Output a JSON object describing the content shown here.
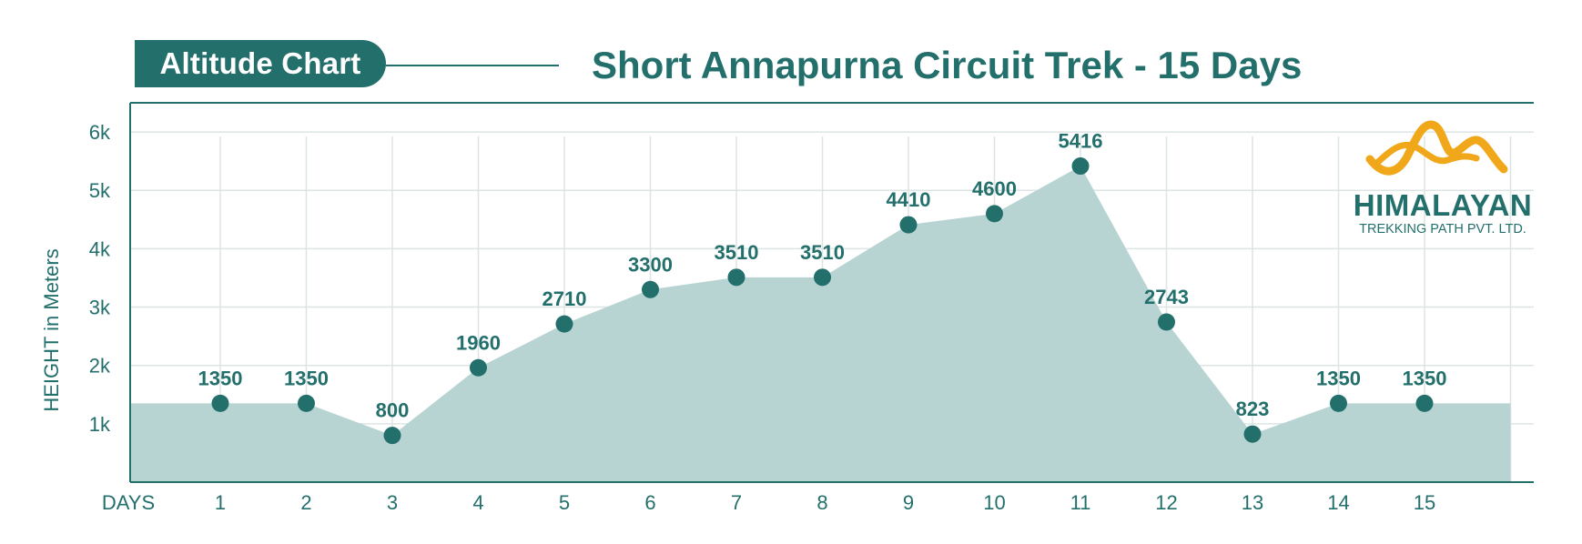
{
  "header": {
    "badge": "Altitude Chart",
    "title": "Short Annapurna Circuit Trek - 15 Days"
  },
  "logo": {
    "name": "HIMALAYAN",
    "subtitle": "TREKKING PATH PVT. LTD.",
    "icon": "mountain-icon",
    "colors": {
      "mark": "#f0a81a",
      "text": "#236f6c"
    }
  },
  "colors": {
    "primary": "#236f6c",
    "area_fill": "#b7d4d3",
    "grid": "#dde4e4"
  },
  "chart_data": {
    "type": "area",
    "x": [
      1,
      2,
      3,
      4,
      5,
      6,
      7,
      8,
      9,
      10,
      11,
      12,
      13,
      14,
      15
    ],
    "values": [
      1350,
      1350,
      800,
      1960,
      2710,
      3300,
      3510,
      3510,
      4410,
      4600,
      5416,
      2743,
      823,
      1350,
      1350
    ],
    "data_labels": [
      "1350",
      "1350",
      "800",
      "1960",
      "2710",
      "3300",
      "3510",
      "3510",
      "4410",
      "4600",
      "5416",
      "2743",
      "823",
      "1350",
      "1350"
    ],
    "xlabel": "DAYS",
    "ylabel": "HEIGHT in Meters",
    "x_tick_labels": [
      "1",
      "2",
      "3",
      "4",
      "5",
      "6",
      "7",
      "8",
      "9",
      "10",
      "11",
      "12",
      "13",
      "14",
      "15"
    ],
    "y_ticks": [
      1000,
      2000,
      3000,
      4000,
      5000,
      6000
    ],
    "y_tick_labels": [
      "1k",
      "2k",
      "3k",
      "4k",
      "5k",
      "6k"
    ],
    "ylim": [
      0,
      6500
    ],
    "grid": true
  }
}
